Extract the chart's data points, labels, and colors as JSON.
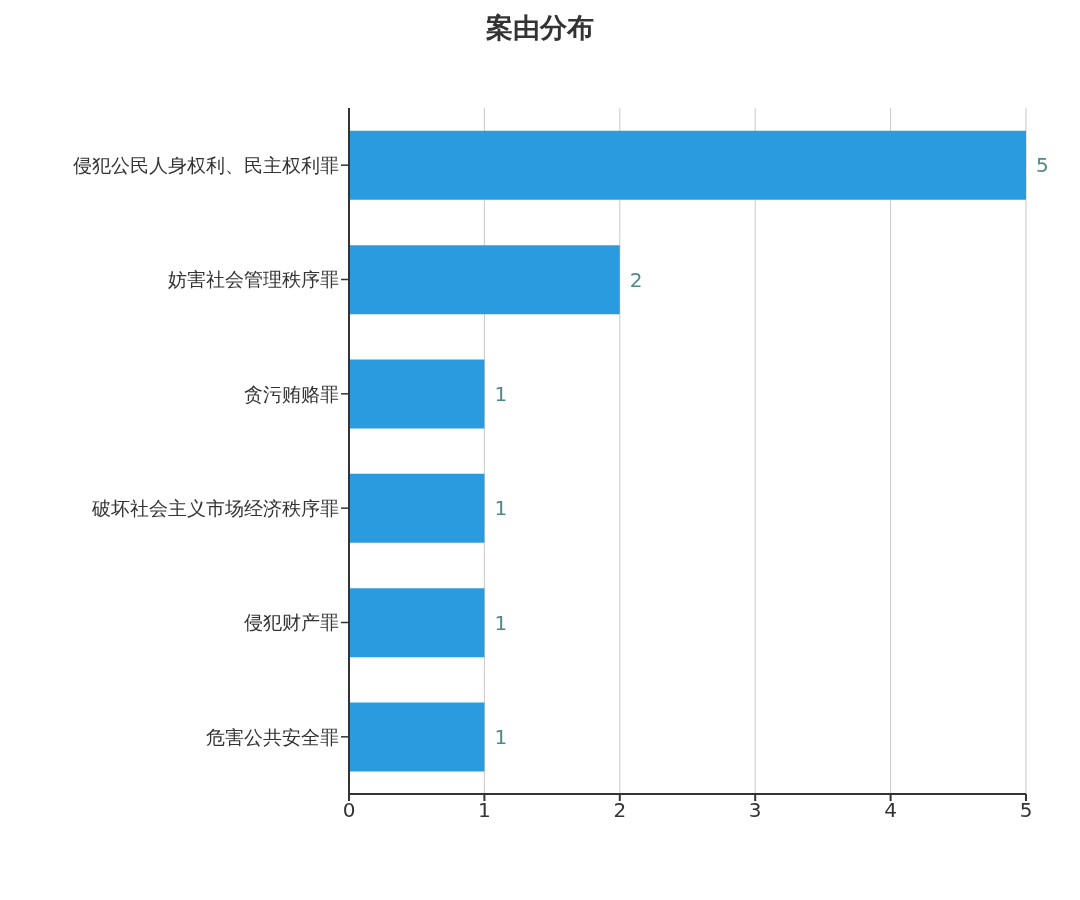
{
  "chart_data": {
    "type": "bar",
    "orientation": "horizontal",
    "title": "案由分布",
    "categories": [
      "侵犯公民人身权利、民主权利罪",
      "妨害社会管理秩序罪",
      "贪污贿赂罪",
      "破坏社会主义市场经济秩序罪",
      "侵犯财产罪",
      "危害公共安全罪"
    ],
    "values": [
      5,
      2,
      1,
      1,
      1,
      1
    ],
    "color": "#2b9be0",
    "xlim": [
      0,
      5
    ],
    "xticks": [
      0,
      1,
      2,
      3,
      4,
      5
    ],
    "grid": "x",
    "data_labels": true
  }
}
